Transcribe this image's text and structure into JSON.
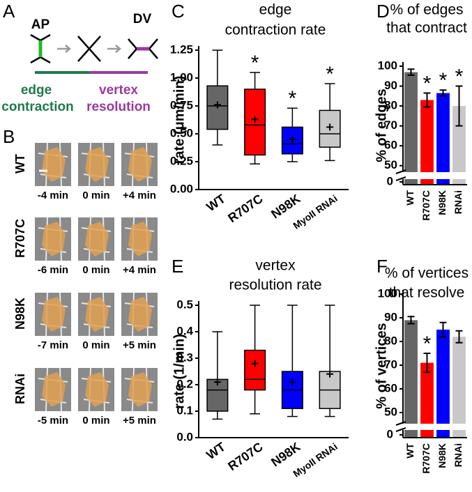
{
  "panel_letters": [
    "A",
    "B",
    "C",
    "D",
    "E",
    "F"
  ],
  "diagram": {
    "left_label": "AP",
    "right_label": "DV",
    "phase1": [
      "edge",
      "contraction"
    ],
    "phase2": [
      "vertex",
      "resolution"
    ]
  },
  "micrographs": [
    {
      "label": "WT",
      "times": [
        "-4 min",
        "0 min",
        "+4 min"
      ]
    },
    {
      "label": "R707C",
      "times": [
        "-6 min",
        "0 min",
        "+4 min"
      ]
    },
    {
      "label": "N98K",
      "times": [
        "-7 min",
        "0 min",
        "+5 min"
      ]
    },
    {
      "label": "RNAi",
      "times": [
        "-5 min",
        "0 min",
        "+5 min"
      ]
    }
  ],
  "chart_data": [
    {
      "type": "box",
      "title": [
        "edge",
        "contraction rate"
      ],
      "ylabel": "rate (μm/min)",
      "categories": [
        "WT",
        "R707C",
        "N98K",
        "MyoII RNAi"
      ],
      "colors": [
        "#666666",
        "#ff0000",
        "#0000ff",
        "#c8c8c8"
      ],
      "boxes": [
        {
          "whislo": 0.4,
          "q1": 0.54,
          "median": 0.75,
          "q3": 0.93,
          "whishi": 1.25,
          "mean": 0.76
        },
        {
          "whislo": 0.23,
          "q1": 0.31,
          "median": 0.58,
          "q3": 0.9,
          "whishi": 1.05,
          "mean": 0.63
        },
        {
          "whislo": 0.25,
          "q1": 0.32,
          "median": 0.41,
          "q3": 0.56,
          "whishi": 0.73,
          "mean": 0.45
        },
        {
          "whislo": 0.26,
          "q1": 0.38,
          "median": 0.5,
          "q3": 0.71,
          "whishi": 0.95,
          "mean": 0.56
        }
      ],
      "stars": [
        null,
        "*",
        "*",
        "*"
      ],
      "ylim": [
        0,
        1.25
      ],
      "yticks": [
        {
          "value": 0,
          "label": "0.00"
        },
        {
          "value": 0.25,
          "label": "0.25"
        },
        {
          "value": 0.5,
          "label": "0.50"
        },
        {
          "value": 0.75,
          "label": "0.75"
        },
        {
          "value": 1,
          "label": "1.00"
        },
        {
          "value": 1.25,
          "label": "1.25"
        }
      ]
    },
    {
      "type": "bar",
      "title": [
        "% of edges",
        "that contract"
      ],
      "ylabel": "% of edges",
      "categories": [
        "WT",
        "R707C",
        "N98K",
        "RNAi"
      ],
      "colors": [
        "#666666",
        "#ff0000",
        "#0000ff",
        "#c8c8c8"
      ],
      "values": [
        97,
        83,
        86.5,
        80
      ],
      "errors": [
        1.5,
        3.5,
        1.5,
        10
      ],
      "stars": [
        null,
        "*",
        "*",
        "*"
      ],
      "ylim": [
        45,
        100
      ],
      "yticks": [
        50,
        60,
        70,
        80,
        90,
        100
      ],
      "ybreak_tick": 0
    },
    {
      "type": "box",
      "title": [
        "vertex",
        "resolution rate"
      ],
      "ylabel": "rate (1/min)",
      "categories": [
        "WT",
        "R707C",
        "N98K",
        "MyoII RNAi"
      ],
      "colors": [
        "#666666",
        "#ff0000",
        "#0000ff",
        "#c8c8c8"
      ],
      "boxes": [
        {
          "whislo": 0.07,
          "q1": 0.1,
          "median": 0.18,
          "q3": 0.22,
          "whishi": 0.4,
          "mean": 0.21
        },
        {
          "whislo": 0.09,
          "q1": 0.18,
          "median": 0.22,
          "q3": 0.33,
          "whishi": 0.5,
          "mean": 0.28
        },
        {
          "whislo": 0.08,
          "q1": 0.11,
          "median": 0.18,
          "q3": 0.25,
          "whishi": 0.5,
          "mean": 0.21
        },
        {
          "whislo": 0.08,
          "q1": 0.11,
          "median": 0.18,
          "q3": 0.25,
          "whishi": 0.5,
          "mean": 0.24
        }
      ],
      "ylim": [
        0,
        0.5
      ],
      "yticks": [
        {
          "value": 0,
          "label": "0.0"
        },
        {
          "value": 0.1,
          "label": "0.1"
        },
        {
          "value": 0.2,
          "label": "0.2"
        },
        {
          "value": 0.3,
          "label": "0.3"
        },
        {
          "value": 0.4,
          "label": "0.4"
        },
        {
          "value": 0.5,
          "label": "0.5"
        }
      ]
    },
    {
      "type": "bar",
      "title": [
        "% of vertices",
        "that resolve"
      ],
      "ylabel": "% of vertices",
      "categories": [
        "WT",
        "R707C",
        "N98K",
        "RNAi"
      ],
      "colors": [
        "#666666",
        "#ff0000",
        "#0000ff",
        "#c8c8c8"
      ],
      "values": [
        89,
        71,
        85,
        82
      ],
      "errors": [
        1.5,
        4,
        3,
        2.5
      ],
      "stars": [
        null,
        "*",
        null,
        null
      ],
      "ylim": [
        45,
        100
      ],
      "yticks": [
        50,
        60,
        70,
        80,
        90,
        100
      ],
      "ybreak_tick": 0
    }
  ]
}
